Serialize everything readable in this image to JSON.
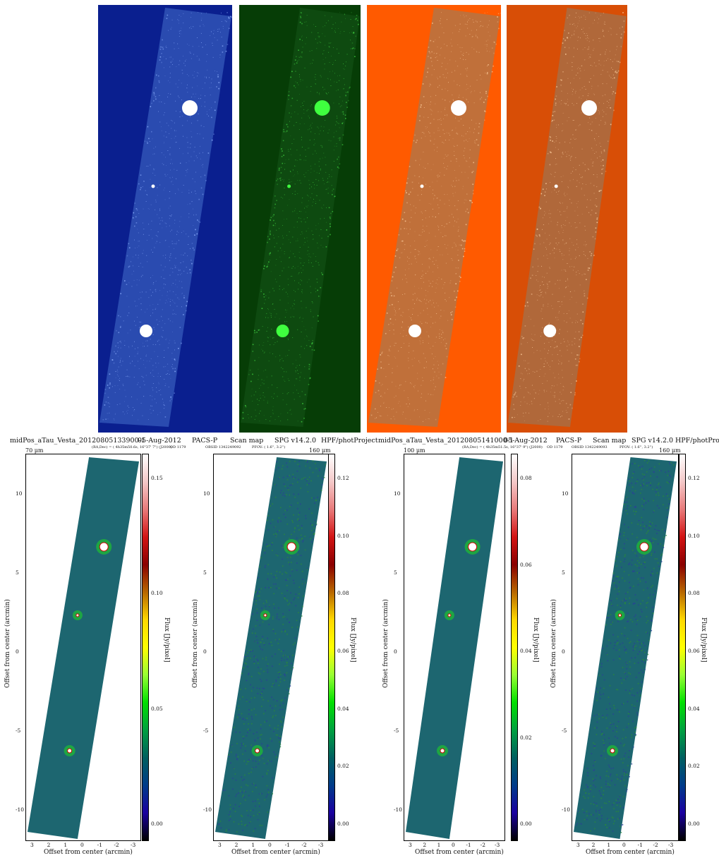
{
  "thumbnails": [
    {
      "name": "blue",
      "bg": "#0a1f8f",
      "strip": "#2a4bb0",
      "speck": "#8fb0ff",
      "star": "#ffffff"
    },
    {
      "name": "green",
      "bg": "#063d06",
      "strip": "#0e4a10",
      "speck": "#3fcf3f",
      "star": "#3fff3f"
    },
    {
      "name": "orange",
      "bg": "#ff5a00",
      "strip": "#c0703a",
      "speck": "#ffd0a0",
      "star": "#ffffff"
    },
    {
      "name": "orange-dark",
      "bg": "#d84e06",
      "strip": "#b0683a",
      "speck": "#ffd0a0",
      "star": "#ffffff"
    }
  ],
  "headers": [
    {
      "obs": "midPos_aTau_Vesta_20120805133900-1",
      "date": "05-Aug-2012",
      "inst": "PACS-P",
      "mode": "Scan map",
      "spg": "SPG v14.2.0",
      "proc": "HPF/photProject",
      "sub1": "(RA,Dec) = ( 4h35m50.6s, 16°37' 7\") (J2000)",
      "od": "OD 1179",
      "obsid": "OBSID 1342249092",
      "pfov": "PFOV: ( 1.6'', 3.2'')"
    },
    {
      "obs": "midPos_aTau_Vesta_20120805141000-1",
      "date": "05-Aug-2012",
      "inst": "PACS-P",
      "mode": "Scan map",
      "spg": "SPG v14.2.0",
      "proc": "HPF/photProject",
      "sub1": "(RA,Dec) = ( 4h35m51.5s, 16°37' 9\") (J2000)",
      "od": "OD 1179",
      "obsid": "OBSID 1342249093",
      "pfov": "PFOV: ( 1.6'', 3.2'')"
    }
  ],
  "plots": [
    {
      "band": "70 μm",
      "cb_ticks": [
        "0.15",
        "0.10",
        "0.05",
        "0.00"
      ],
      "style": "flat"
    },
    {
      "band": "160 μm",
      "cb_ticks": [
        "0.12",
        "0.10",
        "0.08",
        "0.06",
        "0.04",
        "0.02",
        "0.00"
      ],
      "style": "noisy"
    },
    {
      "band": "100 μm",
      "cb_ticks": [
        "0.08",
        "0.06",
        "0.04",
        "0.02",
        "0.00"
      ],
      "style": "flat"
    },
    {
      "band": "160 μm",
      "cb_ticks": [
        "0.12",
        "0.10",
        "0.08",
        "0.06",
        "0.04",
        "0.02",
        "0.00"
      ],
      "style": "noisy"
    }
  ],
  "axes": {
    "xlabel": "Offset from center (arcmin)",
    "ylabel": "Offset from center (arcmin)",
    "cblabel": "Flux [Jy/pixel]",
    "xticks": [
      "3",
      "2",
      "1",
      "0",
      "-1",
      "-2",
      "-3"
    ],
    "yticks": [
      "10",
      "5",
      "0",
      "-5",
      "-10"
    ]
  }
}
